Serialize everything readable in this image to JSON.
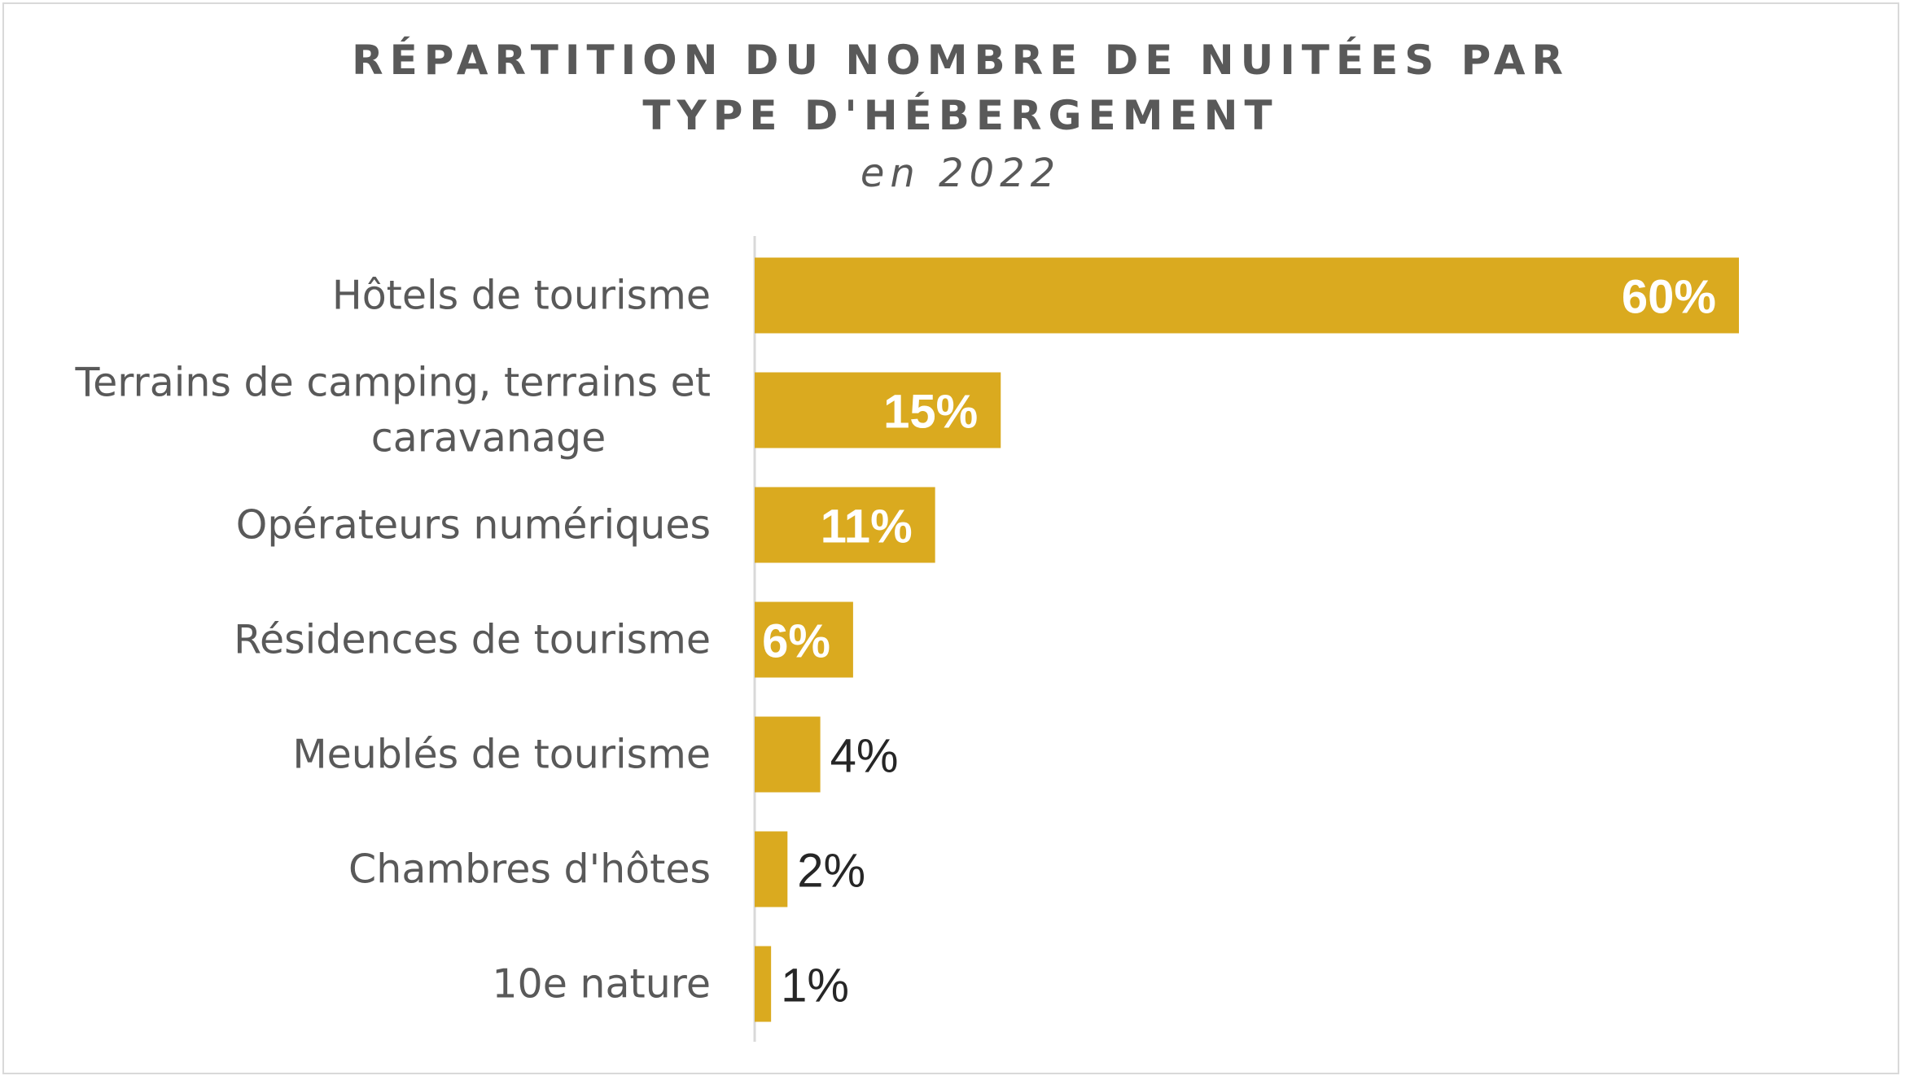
{
  "chart_data": {
    "type": "bar",
    "orientation": "horizontal",
    "title": "RÉPARTITION DU NOMBRE DE NUITÉES PAR TYPE D'HÉBERGEMENT",
    "subtitle": "en 2022",
    "categories": [
      "Hôtels de tourisme",
      "Terrains de camping, terrains et caravanage",
      "Opérateurs numériques",
      "Résidences de tourisme",
      "Meublés de tourisme",
      "Chambres d'hôtes",
      "10e nature"
    ],
    "category_lines": [
      [
        "Hôtels de tourisme"
      ],
      [
        "Terrains de camping, terrains et",
        "caravanage"
      ],
      [
        "Opérateurs numériques"
      ],
      [
        "Résidences de tourisme"
      ],
      [
        "Meublés de tourisme"
      ],
      [
        "Chambres d'hôtes"
      ],
      [
        "10e nature"
      ]
    ],
    "values": [
      60,
      15,
      11,
      6,
      4,
      2,
      1
    ],
    "value_labels": [
      "60%",
      "15%",
      "11%",
      "6%",
      "4%",
      "2%",
      "1%"
    ],
    "label_inside": [
      true,
      true,
      true,
      true,
      false,
      false,
      false
    ],
    "unit": "%",
    "xlim": [
      0,
      60
    ],
    "grid": false,
    "legend": "none",
    "bar_color": "#DAAA1F",
    "inside_label_color": "#FFFFFF",
    "outside_label_color": "#262626",
    "category_label_color": "#595959",
    "axis_color": "#D9D9D9"
  }
}
